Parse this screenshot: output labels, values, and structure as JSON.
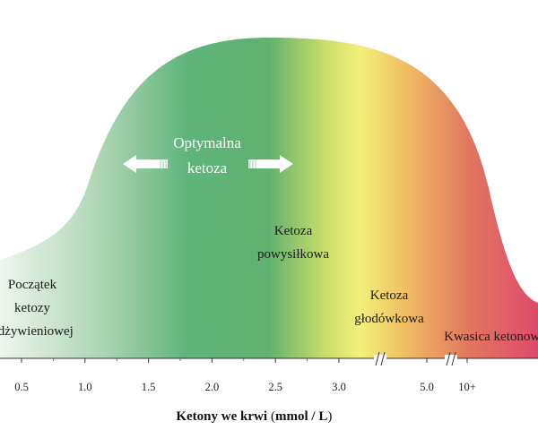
{
  "chart_data": {
    "type": "area",
    "xlabel": "Ketony we krwi",
    "xlabel_unit": "mmol / L",
    "x_ticks": [
      "0.5",
      "1.0",
      "1.5",
      "2.0",
      "2.5",
      "3.0",
      "5.0",
      "10+"
    ],
    "axis_breaks": [
      "3.0–5.0",
      "5.0–10+"
    ],
    "zones": [
      {
        "lines": [
          "Początek",
          "ketozy",
          "odżywieniowej"
        ],
        "x": 0.5,
        "style": "dark"
      },
      {
        "lines": [
          "Optymalna",
          "ketoza"
        ],
        "x": 1.95,
        "style": "light",
        "arrows": true
      },
      {
        "lines": [
          "Ketoza",
          "powysiłkowa"
        ],
        "x": 2.6,
        "style": "dark"
      },
      {
        "lines": [
          "Ketoza",
          "głodówkowa"
        ],
        "x": 3.7,
        "style": "dark"
      },
      {
        "lines": [
          "Kwasica ketonowa"
        ],
        "x": 10.0,
        "style": "dark"
      }
    ],
    "gradient_stops": [
      {
        "at": 0.0,
        "color": "#eef5ee"
      },
      {
        "at": 0.2,
        "color": "#a9d3b0"
      },
      {
        "at": 0.35,
        "color": "#5eb47a"
      },
      {
        "at": 0.5,
        "color": "#62b16f"
      },
      {
        "at": 0.6,
        "color": "#c6dc6a"
      },
      {
        "at": 0.67,
        "color": "#f3f07a"
      },
      {
        "at": 0.75,
        "color": "#f0c063"
      },
      {
        "at": 0.87,
        "color": "#e2775f"
      },
      {
        "at": 1.0,
        "color": "#de4a6a"
      }
    ]
  }
}
